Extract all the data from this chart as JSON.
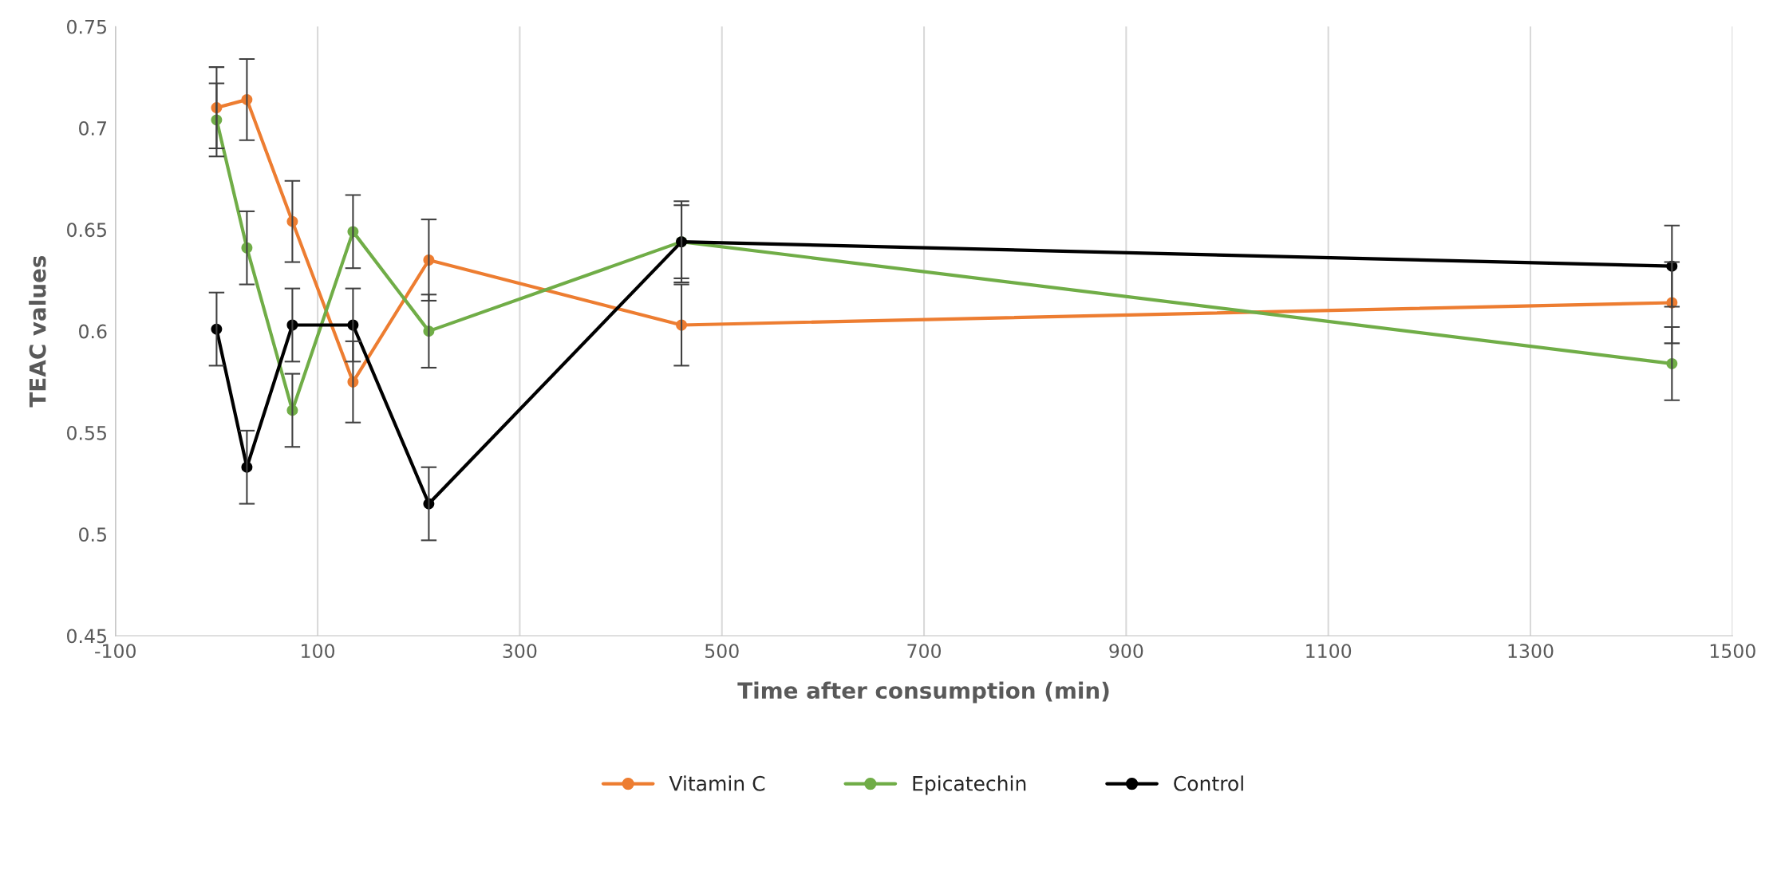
{
  "chart_data": {
    "type": "line",
    "xlabel": "Time after consumption (min)",
    "ylabel": "TEAC values",
    "series": [
      {
        "name": "Vitamin C",
        "color": "#ed7d31",
        "x": [
          0,
          30,
          75,
          135,
          210,
          460,
          1440
        ],
        "values": [
          0.71,
          0.714,
          0.654,
          0.575,
          0.635,
          0.603,
          0.614
        ],
        "errors": [
          0.02,
          0.02,
          0.02,
          0.02,
          0.02,
          0.02,
          0.02
        ]
      },
      {
        "name": "Epicatechin",
        "color": "#70ad47",
        "x": [
          0,
          30,
          75,
          135,
          210,
          460,
          1440
        ],
        "values": [
          0.704,
          0.641,
          0.561,
          0.649,
          0.6,
          0.644,
          0.584
        ],
        "errors": [
          0.018,
          0.018,
          0.018,
          0.018,
          0.018,
          0.018,
          0.018
        ]
      },
      {
        "name": "Control",
        "color": "#000000",
        "x": [
          0,
          30,
          75,
          135,
          210,
          460,
          1440
        ],
        "values": [
          0.601,
          0.533,
          0.603,
          0.603,
          0.515,
          0.644,
          0.632
        ],
        "errors": [
          0.018,
          0.018,
          0.018,
          0.018,
          0.018,
          0.02,
          0.02
        ]
      }
    ],
    "xlim": [
      -100,
      1500
    ],
    "xticks": [
      -100,
      100,
      300,
      500,
      700,
      900,
      1100,
      1300,
      1500
    ],
    "ylim": [
      0.45,
      0.75
    ],
    "yticks": [
      0.45,
      0.5,
      0.55,
      0.6,
      0.65,
      0.7,
      0.75
    ],
    "grid": "x",
    "legend": "bottom",
    "marker": "circle",
    "line_style": "solid"
  }
}
